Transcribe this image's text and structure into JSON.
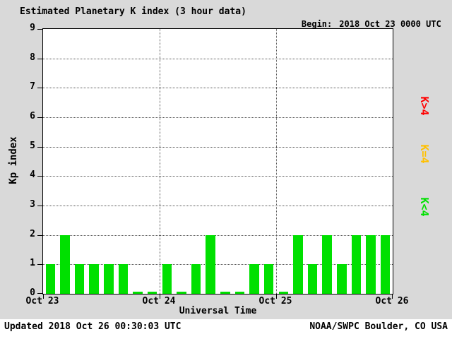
{
  "title": "Estimated Planetary K index (3 hour data)",
  "begin": {
    "label": "Begin:",
    "value": "2018 Oct 23 0000 UTC"
  },
  "axis": {
    "ylabel": "Kp index",
    "xlabel": "Universal Time"
  },
  "legend": [
    {
      "label": "K>4",
      "color_key": "legend_red"
    },
    {
      "label": "K=4",
      "color_key": "legend_yellow"
    },
    {
      "label": "K<4",
      "color_key": "legend_green"
    }
  ],
  "footer": {
    "updated": "Updated 2018 Oct 26 00:30:03 UTC",
    "source": "NOAA/SWPC Boulder, CO USA"
  },
  "colors": {
    "background": "#d9d9d9",
    "plot_bg": "#ffffff",
    "bar_green": "#00e000",
    "bar_yellow": "#ffc000",
    "bar_red": "#ff0000",
    "legend_red": "#ff0000",
    "legend_yellow": "#ffc000",
    "legend_green": "#00e000",
    "grid": "#555555"
  },
  "chart_data": {
    "type": "bar",
    "title": "Estimated Planetary K index (3 hour data)",
    "xlabel": "Universal Time",
    "ylabel": "Kp index",
    "ylim": [
      0,
      9
    ],
    "yticks": [
      0,
      1,
      2,
      3,
      4,
      5,
      6,
      7,
      8,
      9
    ],
    "x_tick_labels": [
      "Oct 23",
      "Oct 24",
      "Oct 25",
      "Oct 26"
    ],
    "interval_hours": 3,
    "begin_utc": "2018 Oct 23 0000 UTC",
    "values": [
      1,
      2,
      1,
      1,
      1,
      1,
      0,
      0,
      1,
      0,
      1,
      2,
      0,
      0,
      1,
      1,
      0,
      2,
      1,
      2,
      1,
      2,
      2,
      2
    ],
    "color_rule": {
      "lt4": "green",
      "eq4": "yellow",
      "gt4": "red"
    },
    "legend_position": "right",
    "grid": "dotted"
  }
}
